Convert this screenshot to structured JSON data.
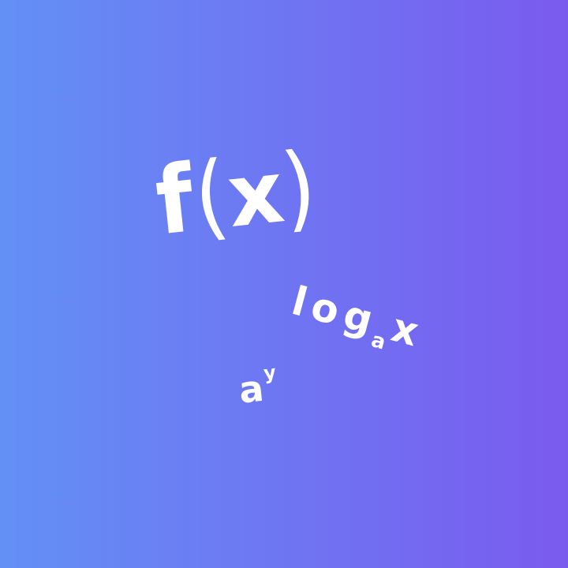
{
  "background": {
    "gradient_start": "#6390F5",
    "gradient_end": "#7A5BEF"
  },
  "expressions": {
    "function": {
      "f": "f",
      "open": "(",
      "var": "x",
      "close": ")"
    },
    "logarithm": {
      "base": "log",
      "sub": "a",
      "arg": "x"
    },
    "power": {
      "base": "a",
      "exponent": "y"
    }
  }
}
